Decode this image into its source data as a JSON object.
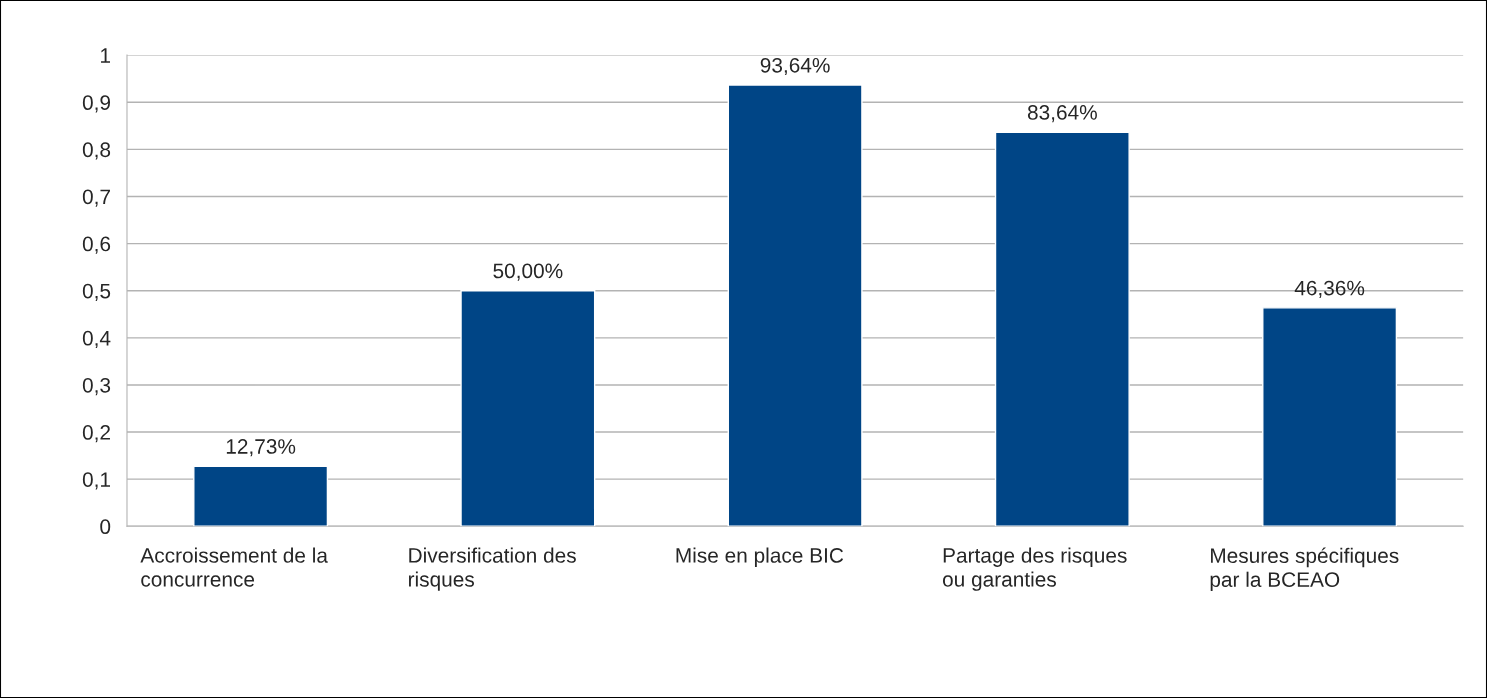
{
  "chart_data": {
    "type": "bar",
    "categories": [
      "Accroissement de la\nconcurrence",
      "Diversification des\nrisques",
      "Mise en place BIC",
      "Partage des risques\nou garanties",
      "Mesures spécifiques\npar la BCEAO"
    ],
    "values": [
      0.1273,
      0.5,
      0.9364,
      0.8364,
      0.4636
    ],
    "value_labels": [
      "12,73%",
      "50,00%",
      "93,64%",
      "83,64%",
      "46,36%"
    ],
    "color": "#004586",
    "ylim": [
      0,
      1
    ],
    "yticks": [
      0,
      {
        "value": 0.1,
        "label": "0,1"
      },
      {
        "value": 0.2,
        "label": "0,2"
      },
      {
        "value": 0.3,
        "label": "0,3"
      },
      {
        "value": 0.4,
        "label": "0,4"
      },
      {
        "value": 0.5,
        "label": "0,5"
      },
      {
        "value": 0.6,
        "label": "0,6"
      },
      {
        "value": 0.7,
        "label": "0,7"
      },
      {
        "value": 0.8,
        "label": "0,8"
      },
      {
        "value": 0.9,
        "label": "0,9"
      },
      1
    ],
    "grid": "y"
  }
}
